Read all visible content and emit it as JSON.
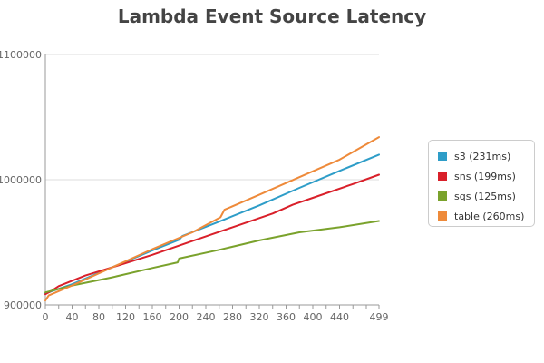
{
  "title": "Lambda Event Source Latency",
  "chart_data": {
    "type": "line",
    "title": "Lambda Event Source Latency",
    "xlabel": "",
    "ylabel": "",
    "xlim": [
      0,
      499
    ],
    "ylim": [
      900000,
      1100000
    ],
    "x_ticks": [
      0,
      20,
      40,
      60,
      80,
      100,
      120,
      140,
      160,
      180,
      200,
      220,
      240,
      260,
      280,
      300,
      320,
      340,
      360,
      380,
      400,
      420,
      440,
      460,
      480,
      499
    ],
    "x_tick_labels": [
      "0",
      "",
      "40",
      "",
      "80",
      "",
      "120",
      "",
      "160",
      "",
      "200",
      "",
      "240",
      "",
      "280",
      "",
      "320",
      "",
      "360",
      "",
      "400",
      "",
      "440",
      "",
      "",
      "499"
    ],
    "y_ticks": [
      900000,
      1000000,
      1100000
    ],
    "y_tick_labels": [
      "900000",
      "1000000",
      "1100000"
    ],
    "grid": "horizontal",
    "legend_position": "right",
    "series": [
      {
        "name": "s3 (231ms)",
        "color": "#2E9DC8",
        "x": [
          0,
          10,
          40,
          100,
          160,
          200,
          205,
          260,
          320,
          380,
          440,
          499
        ],
        "y": [
          909000,
          911000,
          916500,
          930000,
          943500,
          952000,
          955000,
          966500,
          979500,
          993500,
          1007000,
          1020000
        ]
      },
      {
        "name": "sns (199ms)",
        "color": "#D9202A",
        "x": [
          0,
          10,
          20,
          60,
          100,
          160,
          220,
          280,
          340,
          370,
          400,
          460,
          499
        ],
        "y": [
          908500,
          911500,
          915000,
          923500,
          930000,
          940000,
          951000,
          962000,
          973000,
          980000,
          985500,
          996500,
          1004000
        ]
      },
      {
        "name": "sqs (125ms)",
        "color": "#7AA22C",
        "x": [
          0,
          40,
          100,
          160,
          198,
          200,
          260,
          320,
          380,
          440,
          499
        ],
        "y": [
          910000,
          915500,
          922000,
          929500,
          934000,
          937000,
          944000,
          951500,
          958000,
          962000,
          967000
        ]
      },
      {
        "name": "table (260ms)",
        "color": "#EE8A3A",
        "x": [
          0,
          5,
          40,
          100,
          160,
          220,
          262,
          268,
          320,
          380,
          440,
          499
        ],
        "y": [
          903500,
          907500,
          915500,
          930000,
          944500,
          958000,
          970000,
          976000,
          988000,
          1002000,
          1016000,
          1034000
        ]
      }
    ]
  }
}
